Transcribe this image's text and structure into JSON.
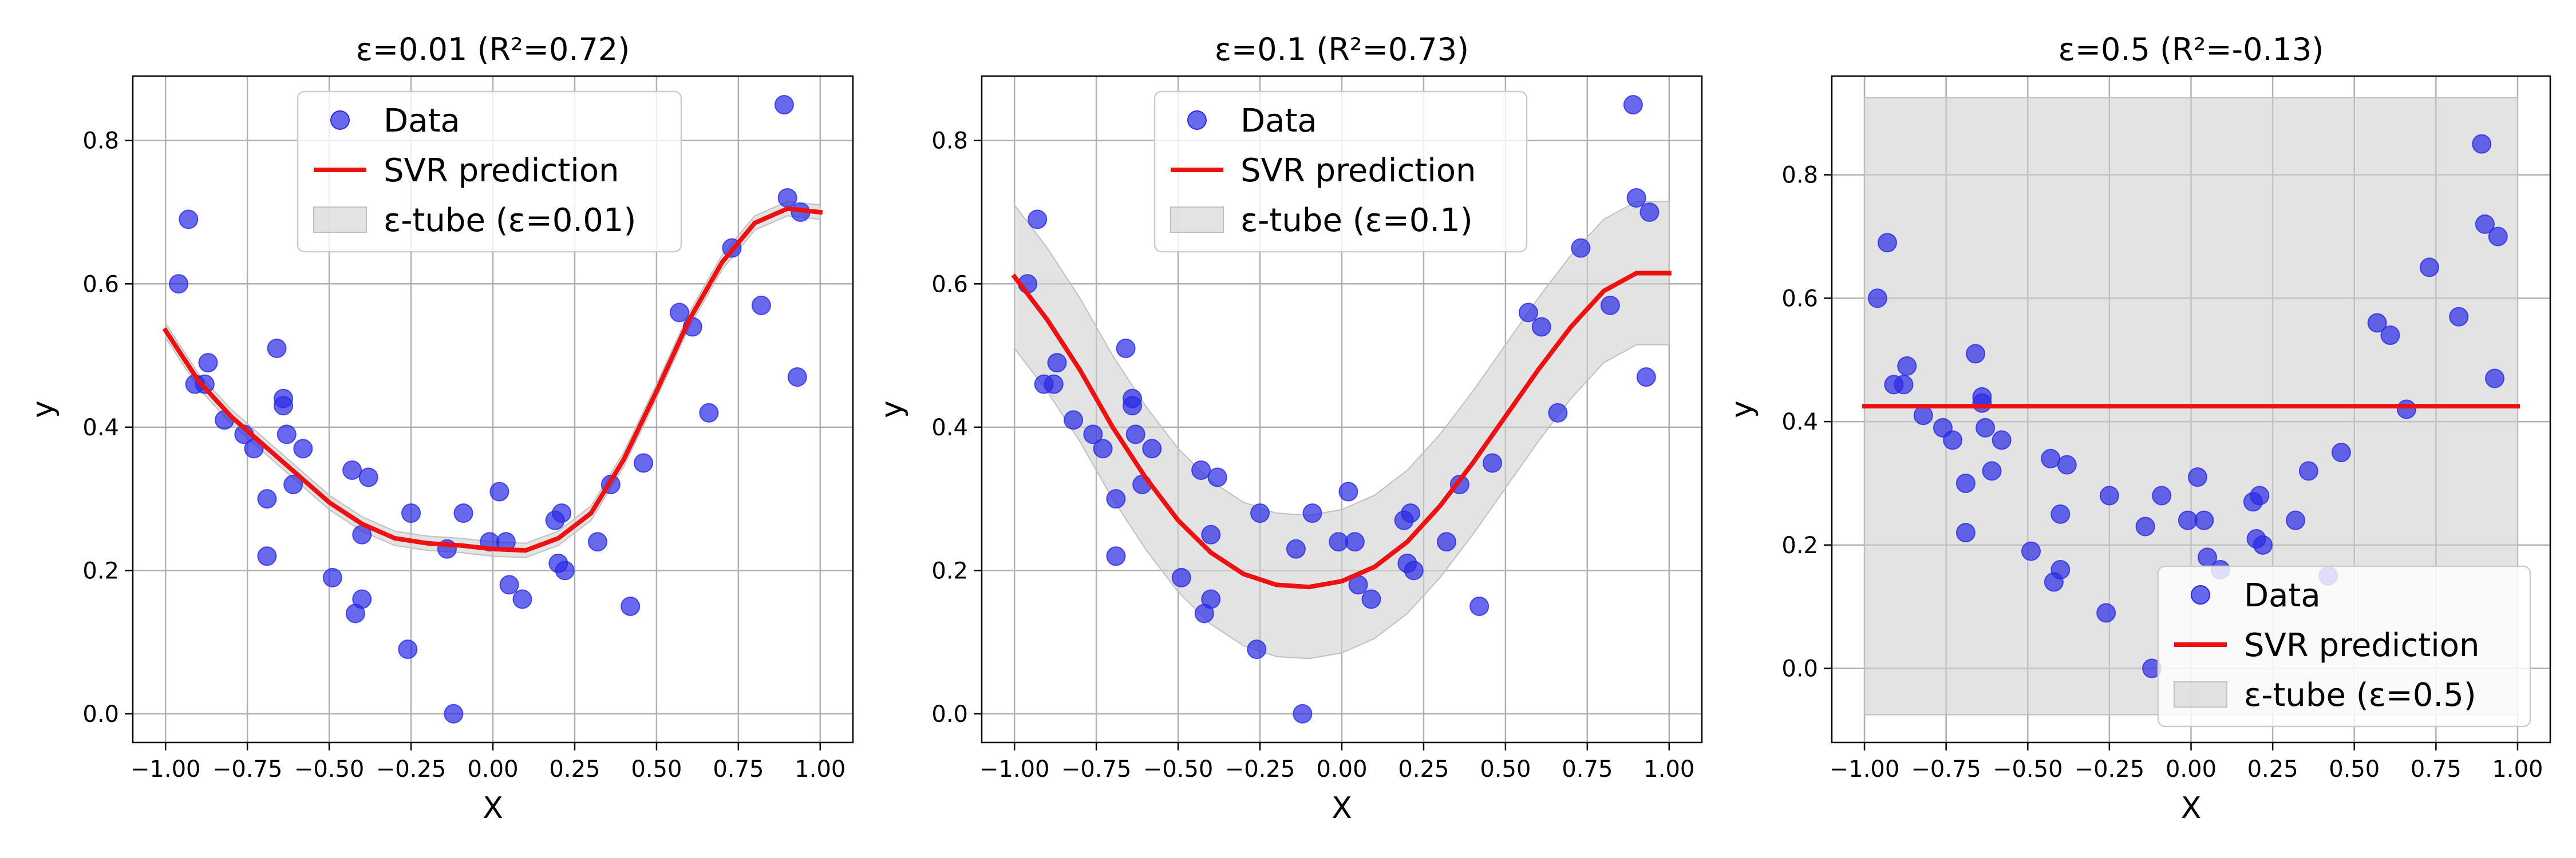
{
  "chart_data": [
    {
      "type": "scatter",
      "title": "ε=0.01 (R²=0.72)",
      "xlabel": "X",
      "ylabel": "y",
      "xlim": [
        -1.1,
        1.1
      ],
      "ylim": [
        -0.04,
        0.89
      ],
      "xticks": [
        -1.0,
        -0.75,
        -0.5,
        -0.25,
        0.0,
        0.25,
        0.5,
        0.75,
        1.0
      ],
      "xtick_labels": [
        "−1.00",
        "−0.75",
        "−0.50",
        "−0.25",
        "0.00",
        "0.25",
        "0.50",
        "0.75",
        "1.00"
      ],
      "yticks": [
        0.0,
        0.2,
        0.4,
        0.6,
        0.8
      ],
      "ytick_labels": [
        "0.0",
        "0.2",
        "0.4",
        "0.6",
        "0.8"
      ],
      "grid": true,
      "legend_position": "top-center",
      "legend": [
        "Data",
        "SVR prediction",
        "ε-tube (ε=0.01)"
      ],
      "epsilon": 0.01,
      "data_points": {
        "x": [
          -0.96,
          -0.93,
          -0.91,
          -0.88,
          -0.87,
          -0.82,
          -0.76,
          -0.73,
          -0.69,
          -0.69,
          -0.66,
          -0.64,
          -0.64,
          -0.63,
          -0.61,
          -0.58,
          -0.49,
          -0.43,
          -0.42,
          -0.4,
          -0.4,
          -0.38,
          -0.26,
          -0.25,
          -0.14,
          -0.12,
          -0.09,
          -0.01,
          0.02,
          0.04,
          0.05,
          0.09,
          0.19,
          0.2,
          0.21,
          0.22,
          0.32,
          0.36,
          0.42,
          0.46,
          0.57,
          0.61,
          0.66,
          0.73,
          0.82,
          0.89,
          0.9,
          0.93,
          0.94
        ],
        "y": [
          0.6,
          0.69,
          0.46,
          0.46,
          0.49,
          0.41,
          0.39,
          0.37,
          0.3,
          0.22,
          0.51,
          0.44,
          0.43,
          0.39,
          0.32,
          0.37,
          0.19,
          0.34,
          0.14,
          0.25,
          0.16,
          0.33,
          0.09,
          0.28,
          0.23,
          0.0,
          0.28,
          0.24,
          0.31,
          0.24,
          0.18,
          0.16,
          0.27,
          0.21,
          0.28,
          0.2,
          0.24,
          0.32,
          0.15,
          0.35,
          0.56,
          0.54,
          0.42,
          0.65,
          0.57,
          0.85,
          0.72,
          0.47,
          0.7
        ]
      },
      "prediction": {
        "x": [
          -1.0,
          -0.9,
          -0.8,
          -0.7,
          -0.6,
          -0.5,
          -0.4,
          -0.3,
          -0.2,
          -0.1,
          0.0,
          0.1,
          0.2,
          0.3,
          0.4,
          0.5,
          0.6,
          0.7,
          0.8,
          0.9,
          1.0
        ],
        "y": [
          0.535,
          0.465,
          0.415,
          0.375,
          0.335,
          0.295,
          0.265,
          0.245,
          0.238,
          0.235,
          0.23,
          0.228,
          0.245,
          0.28,
          0.355,
          0.45,
          0.55,
          0.63,
          0.685,
          0.705,
          0.7
        ]
      }
    },
    {
      "type": "scatter",
      "title": "ε=0.1 (R²=0.73)",
      "xlabel": "X",
      "ylabel": "y",
      "xlim": [
        -1.1,
        1.1
      ],
      "ylim": [
        -0.04,
        0.89
      ],
      "xticks": [
        -1.0,
        -0.75,
        -0.5,
        -0.25,
        0.0,
        0.25,
        0.5,
        0.75,
        1.0
      ],
      "xtick_labels": [
        "−1.00",
        "−0.75",
        "−0.50",
        "−0.25",
        "0.00",
        "0.25",
        "0.50",
        "0.75",
        "1.00"
      ],
      "yticks": [
        0.0,
        0.2,
        0.4,
        0.6,
        0.8
      ],
      "ytick_labels": [
        "0.0",
        "0.2",
        "0.4",
        "0.6",
        "0.8"
      ],
      "grid": true,
      "legend_position": "top-center",
      "legend": [
        "Data",
        "SVR prediction",
        "ε-tube (ε=0.1)"
      ],
      "epsilon": 0.1,
      "data_points": {
        "x": [
          -0.96,
          -0.93,
          -0.91,
          -0.88,
          -0.87,
          -0.82,
          -0.76,
          -0.73,
          -0.69,
          -0.69,
          -0.66,
          -0.64,
          -0.64,
          -0.63,
          -0.61,
          -0.58,
          -0.49,
          -0.43,
          -0.42,
          -0.4,
          -0.4,
          -0.38,
          -0.26,
          -0.25,
          -0.14,
          -0.12,
          -0.09,
          -0.01,
          0.02,
          0.04,
          0.05,
          0.09,
          0.19,
          0.2,
          0.21,
          0.22,
          0.32,
          0.36,
          0.42,
          0.46,
          0.57,
          0.61,
          0.66,
          0.73,
          0.82,
          0.89,
          0.9,
          0.93,
          0.94
        ],
        "y": [
          0.6,
          0.69,
          0.46,
          0.46,
          0.49,
          0.41,
          0.39,
          0.37,
          0.3,
          0.22,
          0.51,
          0.44,
          0.43,
          0.39,
          0.32,
          0.37,
          0.19,
          0.34,
          0.14,
          0.25,
          0.16,
          0.33,
          0.09,
          0.28,
          0.23,
          0.0,
          0.28,
          0.24,
          0.31,
          0.24,
          0.18,
          0.16,
          0.27,
          0.21,
          0.28,
          0.2,
          0.24,
          0.32,
          0.15,
          0.35,
          0.56,
          0.54,
          0.42,
          0.65,
          0.57,
          0.85,
          0.72,
          0.47,
          0.7
        ]
      },
      "prediction": {
        "x": [
          -1.0,
          -0.9,
          -0.8,
          -0.7,
          -0.6,
          -0.5,
          -0.4,
          -0.3,
          -0.2,
          -0.1,
          0.0,
          0.1,
          0.2,
          0.3,
          0.4,
          0.5,
          0.6,
          0.7,
          0.8,
          0.9,
          1.0
        ],
        "y": [
          0.61,
          0.55,
          0.48,
          0.4,
          0.33,
          0.27,
          0.225,
          0.195,
          0.18,
          0.177,
          0.185,
          0.205,
          0.24,
          0.29,
          0.35,
          0.415,
          0.48,
          0.54,
          0.59,
          0.615,
          0.615
        ]
      }
    },
    {
      "type": "scatter",
      "title": "ε=0.5 (R²=-0.13)",
      "xlabel": "X",
      "ylabel": "y",
      "xlim": [
        -1.1,
        1.1
      ],
      "ylim": [
        -0.12,
        0.96
      ],
      "xticks": [
        -1.0,
        -0.75,
        -0.5,
        -0.25,
        0.0,
        0.25,
        0.5,
        0.75,
        1.0
      ],
      "xtick_labels": [
        "−1.00",
        "−0.75",
        "−0.50",
        "−0.25",
        "0.00",
        "0.25",
        "0.50",
        "0.75",
        "1.00"
      ],
      "yticks": [
        0.0,
        0.2,
        0.4,
        0.6,
        0.8
      ],
      "ytick_labels": [
        "0.0",
        "0.2",
        "0.4",
        "0.6",
        "0.8"
      ],
      "grid": true,
      "legend_position": "bottom-right",
      "legend": [
        "Data",
        "SVR prediction",
        "ε-tube (ε=0.5)"
      ],
      "epsilon": 0.5,
      "data_points": {
        "x": [
          -0.96,
          -0.93,
          -0.91,
          -0.88,
          -0.87,
          -0.82,
          -0.76,
          -0.73,
          -0.69,
          -0.69,
          -0.66,
          -0.64,
          -0.64,
          -0.63,
          -0.61,
          -0.58,
          -0.49,
          -0.43,
          -0.42,
          -0.4,
          -0.4,
          -0.38,
          -0.26,
          -0.25,
          -0.14,
          -0.12,
          -0.09,
          -0.01,
          0.02,
          0.04,
          0.05,
          0.09,
          0.19,
          0.2,
          0.21,
          0.22,
          0.32,
          0.36,
          0.42,
          0.46,
          0.57,
          0.61,
          0.66,
          0.73,
          0.82,
          0.89,
          0.9,
          0.93,
          0.94
        ],
        "y": [
          0.6,
          0.69,
          0.46,
          0.46,
          0.49,
          0.41,
          0.39,
          0.37,
          0.3,
          0.22,
          0.51,
          0.44,
          0.43,
          0.39,
          0.32,
          0.37,
          0.19,
          0.34,
          0.14,
          0.25,
          0.16,
          0.33,
          0.09,
          0.28,
          0.23,
          0.0,
          0.28,
          0.24,
          0.31,
          0.24,
          0.18,
          0.16,
          0.27,
          0.21,
          0.28,
          0.2,
          0.24,
          0.32,
          0.15,
          0.35,
          0.56,
          0.54,
          0.42,
          0.65,
          0.57,
          0.85,
          0.72,
          0.47,
          0.7
        ]
      },
      "prediction": {
        "x": [
          -1.0,
          1.0
        ],
        "y": [
          0.425,
          0.425
        ]
      }
    }
  ],
  "colors": {
    "data_points": "#2929e6",
    "prediction_line": "#ee1111",
    "tube_fill": "#d0d0d0",
    "grid": "#b0b0b0"
  }
}
